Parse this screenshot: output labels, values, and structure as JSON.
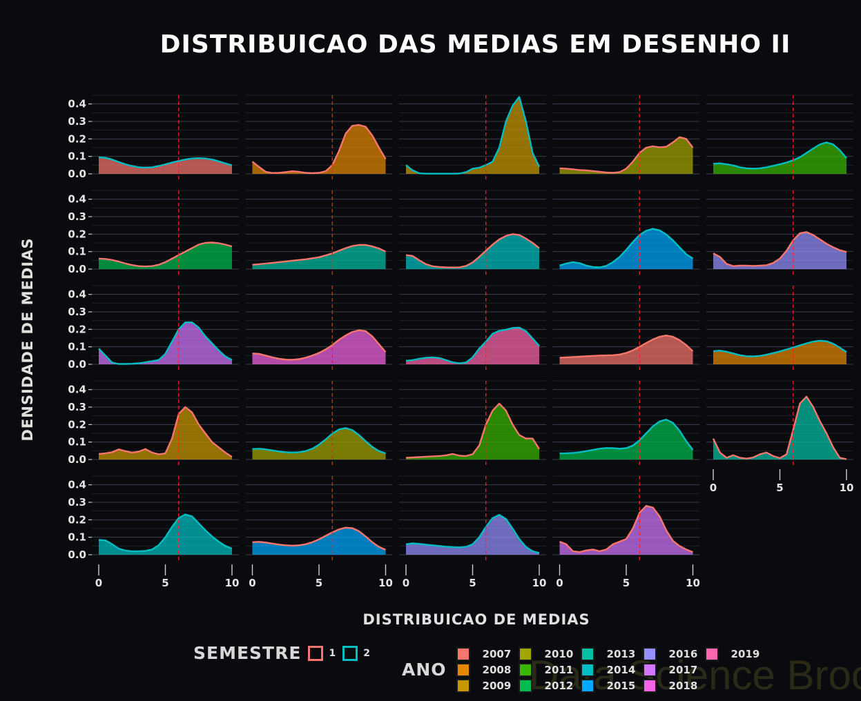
{
  "title": "DISTRIBUICAO DAS MEDIAS EM DESENHO II",
  "watermark": "Data Science Broon",
  "legend": {
    "semestre_title": "SEMESTRE",
    "semestres": [
      {
        "label": "1",
        "color": "#f8766d"
      },
      {
        "label": "2",
        "color": "#00bfc4"
      }
    ],
    "ano_title": "ANO",
    "anos": [
      {
        "label": "2007",
        "color": "#f8766d"
      },
      {
        "label": "2008",
        "color": "#e58700"
      },
      {
        "label": "2009",
        "color": "#c99800"
      },
      {
        "label": "2010",
        "color": "#a3a500"
      },
      {
        "label": "2011",
        "color": "#39b600"
      },
      {
        "label": "2012",
        "color": "#00bb4e"
      },
      {
        "label": "2013",
        "color": "#00c1a3"
      },
      {
        "label": "2014",
        "color": "#00bfc4"
      },
      {
        "label": "2015",
        "color": "#00a9ff"
      },
      {
        "label": "2016",
        "color": "#9590ff"
      },
      {
        "label": "2017",
        "color": "#d376ff"
      },
      {
        "label": "2018",
        "color": "#f564e3"
      },
      {
        "label": "2019",
        "color": "#ff65ac"
      }
    ]
  },
  "chart_data": {
    "type": "area",
    "subtype": "density, faceted by year and semester",
    "xlabel": "DISTRIBUICAO DE MEDIAS",
    "ylabel": "DENSIDADE DE MEDIAS",
    "xlim": [
      0,
      10
    ],
    "ylim": [
      0,
      0.45
    ],
    "x_ticks": [
      "0",
      "5",
      "10"
    ],
    "y_ticks": [
      "0.0",
      "0.1",
      "0.2",
      "0.3",
      "0.4"
    ],
    "reference_line_x": 6,
    "reference_line_color": "#ff1f1f",
    "x": [
      0,
      0.5,
      1,
      1.5,
      2,
      2.5,
      3,
      3.5,
      4,
      4.5,
      5,
      5.5,
      6,
      6.5,
      7,
      7.5,
      8,
      8.5,
      9,
      9.5,
      10
    ],
    "panels": [
      {
        "year": "2007",
        "semester": "2",
        "values": [
          0.095,
          0.092,
          0.082,
          0.068,
          0.055,
          0.045,
          0.038,
          0.036,
          0.038,
          0.045,
          0.055,
          0.065,
          0.074,
          0.082,
          0.088,
          0.09,
          0.088,
          0.082,
          0.072,
          0.06,
          0.048
        ]
      },
      {
        "year": "2008",
        "semester": "1",
        "values": [
          0.07,
          0.04,
          0.012,
          0.005,
          0.006,
          0.01,
          0.015,
          0.012,
          0.006,
          0.004,
          0.006,
          0.015,
          0.05,
          0.13,
          0.23,
          0.275,
          0.28,
          0.27,
          0.22,
          0.15,
          0.085
        ]
      },
      {
        "year": "2009",
        "semester": "2",
        "values": [
          0.05,
          0.02,
          0.003,
          0.001,
          0.001,
          0.001,
          0.001,
          0.001,
          0.002,
          0.01,
          0.03,
          0.035,
          0.05,
          0.07,
          0.15,
          0.3,
          0.39,
          0.44,
          0.3,
          0.12,
          0.04
        ]
      },
      {
        "year": "2010",
        "semester": "1",
        "values": [
          0.032,
          0.03,
          0.026,
          0.022,
          0.02,
          0.016,
          0.012,
          0.008,
          0.006,
          0.01,
          0.03,
          0.07,
          0.12,
          0.15,
          0.158,
          0.152,
          0.155,
          0.18,
          0.21,
          0.2,
          0.15
        ]
      },
      {
        "year": "2011",
        "semester": "2",
        "values": [
          0.058,
          0.06,
          0.055,
          0.048,
          0.038,
          0.032,
          0.03,
          0.032,
          0.038,
          0.046,
          0.055,
          0.065,
          0.078,
          0.095,
          0.12,
          0.145,
          0.168,
          0.18,
          0.168,
          0.135,
          0.09
        ]
      },
      {
        "year": "2012",
        "semester": "1",
        "values": [
          0.06,
          0.058,
          0.052,
          0.043,
          0.032,
          0.023,
          0.017,
          0.015,
          0.017,
          0.025,
          0.04,
          0.06,
          0.08,
          0.1,
          0.12,
          0.14,
          0.15,
          0.152,
          0.148,
          0.14,
          0.13
        ]
      },
      {
        "year": "2013",
        "semester": "1",
        "values": [
          0.025,
          0.028,
          0.032,
          0.036,
          0.04,
          0.044,
          0.048,
          0.052,
          0.056,
          0.062,
          0.068,
          0.078,
          0.09,
          0.105,
          0.12,
          0.132,
          0.138,
          0.138,
          0.13,
          0.118,
          0.1
        ]
      },
      {
        "year": "2014",
        "semester": "1",
        "values": [
          0.08,
          0.075,
          0.05,
          0.028,
          0.016,
          0.012,
          0.01,
          0.009,
          0.01,
          0.018,
          0.038,
          0.07,
          0.105,
          0.14,
          0.17,
          0.19,
          0.2,
          0.195,
          0.175,
          0.15,
          0.12
        ]
      },
      {
        "year": "2015",
        "semester": "2",
        "values": [
          0.02,
          0.032,
          0.04,
          0.034,
          0.02,
          0.012,
          0.01,
          0.018,
          0.04,
          0.07,
          0.11,
          0.155,
          0.195,
          0.22,
          0.23,
          0.222,
          0.198,
          0.165,
          0.125,
          0.085,
          0.06
        ]
      },
      {
        "year": "2016",
        "semester": "1",
        "values": [
          0.09,
          0.07,
          0.03,
          0.017,
          0.02,
          0.02,
          0.018,
          0.02,
          0.022,
          0.035,
          0.06,
          0.105,
          0.165,
          0.205,
          0.212,
          0.195,
          0.17,
          0.145,
          0.125,
          0.108,
          0.098
        ]
      },
      {
        "year": "2017",
        "semester": "2",
        "values": [
          0.09,
          0.05,
          0.01,
          0.002,
          0.002,
          0.003,
          0.006,
          0.012,
          0.018,
          0.025,
          0.06,
          0.13,
          0.2,
          0.24,
          0.24,
          0.21,
          0.16,
          0.12,
          0.08,
          0.045,
          0.025
        ]
      },
      {
        "year": "2018",
        "semester": "1",
        "values": [
          0.062,
          0.06,
          0.05,
          0.04,
          0.032,
          0.027,
          0.026,
          0.03,
          0.038,
          0.05,
          0.065,
          0.085,
          0.11,
          0.14,
          0.165,
          0.185,
          0.195,
          0.19,
          0.16,
          0.115,
          0.07
        ]
      },
      {
        "year": "2019",
        "semester": "2",
        "values": [
          0.02,
          0.024,
          0.032,
          0.038,
          0.04,
          0.036,
          0.024,
          0.012,
          0.006,
          0.01,
          0.04,
          0.09,
          0.13,
          0.175,
          0.192,
          0.198,
          0.208,
          0.21,
          0.19,
          0.148,
          0.105
        ]
      },
      {
        "year": "2007",
        "semester": "1",
        "values": [
          0.038,
          0.04,
          0.042,
          0.044,
          0.046,
          0.048,
          0.05,
          0.051,
          0.052,
          0.056,
          0.065,
          0.08,
          0.1,
          0.122,
          0.142,
          0.158,
          0.165,
          0.158,
          0.138,
          0.11,
          0.075
        ]
      },
      {
        "year": "2008",
        "semester": "2",
        "values": [
          0.075,
          0.078,
          0.072,
          0.062,
          0.052,
          0.046,
          0.045,
          0.048,
          0.055,
          0.064,
          0.074,
          0.085,
          0.096,
          0.108,
          0.12,
          0.13,
          0.135,
          0.132,
          0.118,
          0.095,
          0.07
        ]
      },
      {
        "year": "2009",
        "semester": "1",
        "values": [
          0.032,
          0.036,
          0.042,
          0.058,
          0.048,
          0.04,
          0.045,
          0.06,
          0.04,
          0.03,
          0.035,
          0.12,
          0.26,
          0.3,
          0.27,
          0.2,
          0.15,
          0.1,
          0.07,
          0.04,
          0.015
        ]
      },
      {
        "year": "2010",
        "semester": "2",
        "values": [
          0.06,
          0.062,
          0.058,
          0.052,
          0.046,
          0.042,
          0.04,
          0.042,
          0.048,
          0.062,
          0.085,
          0.115,
          0.148,
          0.172,
          0.18,
          0.168,
          0.14,
          0.105,
          0.072,
          0.048,
          0.035
        ]
      },
      {
        "year": "2011",
        "semester": "1",
        "values": [
          0.01,
          0.012,
          0.014,
          0.016,
          0.018,
          0.02,
          0.024,
          0.032,
          0.022,
          0.02,
          0.03,
          0.08,
          0.2,
          0.28,
          0.32,
          0.28,
          0.2,
          0.14,
          0.12,
          0.12,
          0.06
        ]
      },
      {
        "year": "2012",
        "semester": "2",
        "values": [
          0.035,
          0.036,
          0.038,
          0.042,
          0.048,
          0.055,
          0.062,
          0.066,
          0.065,
          0.062,
          0.065,
          0.08,
          0.11,
          0.15,
          0.19,
          0.218,
          0.228,
          0.21,
          0.165,
          0.105,
          0.055
        ]
      },
      {
        "year": "2013",
        "semester": "1",
        "values": [
          0.12,
          0.04,
          0.01,
          0.025,
          0.01,
          0.005,
          0.012,
          0.03,
          0.04,
          0.02,
          0.008,
          0.03,
          0.17,
          0.32,
          0.36,
          0.3,
          0.22,
          0.15,
          0.07,
          0.01,
          0.002
        ]
      },
      {
        "year": "2014",
        "semester": "2",
        "values": [
          0.085,
          0.082,
          0.06,
          0.035,
          0.024,
          0.02,
          0.02,
          0.022,
          0.03,
          0.055,
          0.1,
          0.16,
          0.21,
          0.23,
          0.22,
          0.18,
          0.14,
          0.105,
          0.075,
          0.05,
          0.035
        ]
      },
      {
        "year": "2015",
        "semester": "1",
        "values": [
          0.072,
          0.074,
          0.07,
          0.064,
          0.058,
          0.054,
          0.052,
          0.054,
          0.06,
          0.072,
          0.088,
          0.108,
          0.128,
          0.145,
          0.155,
          0.152,
          0.135,
          0.105,
          0.072,
          0.045,
          0.028
        ]
      },
      {
        "year": "2016",
        "semester": "2",
        "values": [
          0.06,
          0.065,
          0.062,
          0.058,
          0.054,
          0.05,
          0.046,
          0.044,
          0.042,
          0.045,
          0.06,
          0.1,
          0.16,
          0.21,
          0.228,
          0.205,
          0.15,
          0.09,
          0.045,
          0.02,
          0.01
        ]
      },
      {
        "year": "2017",
        "semester": "1",
        "values": [
          0.075,
          0.06,
          0.02,
          0.015,
          0.025,
          0.03,
          0.02,
          0.03,
          0.06,
          0.075,
          0.09,
          0.15,
          0.24,
          0.28,
          0.27,
          0.22,
          0.14,
          0.08,
          0.05,
          0.03,
          0.015
        ]
      }
    ]
  }
}
